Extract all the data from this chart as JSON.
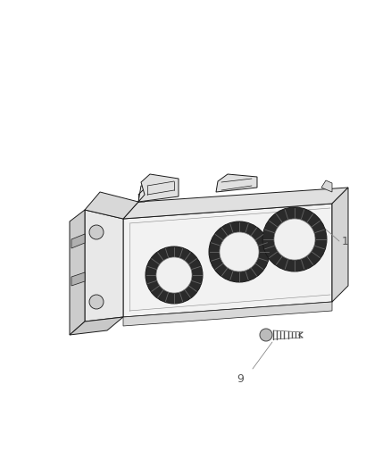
{
  "background_color": "#ffffff",
  "line_color": "#1a1a1a",
  "face_color_front": "#f2f2f2",
  "face_color_top": "#e0e0e0",
  "face_color_side": "#d4d4d4",
  "face_color_bracket": "#e8e8e8",
  "knob_dark": "#2a2a2a",
  "knob_light": "#f0f0f0",
  "knurl_color": "#444444",
  "label_color": "#555555",
  "leader_color": "#888888",
  "label_1": "1",
  "label_9": "9",
  "font_size_label": 9
}
